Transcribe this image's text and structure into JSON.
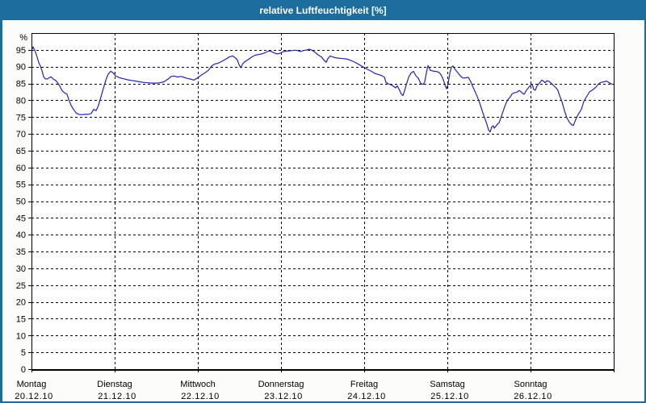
{
  "window": {
    "title": "relative Luftfeuchtigkeit [%]",
    "colors": {
      "titlebar": "#1d6c9e",
      "border": "#1d6c9e",
      "background": "#fcfdfa",
      "plot_background": "#ffffff",
      "grid": "#000000",
      "text": "#000000"
    }
  },
  "chart_data": {
    "type": "line",
    "title": "relative Luftfeuchtigkeit [%]",
    "ylabel": "%",
    "unit_label": "%",
    "ylim": [
      0,
      100
    ],
    "y_ticks": [
      0,
      5,
      10,
      15,
      20,
      25,
      30,
      35,
      40,
      45,
      50,
      55,
      60,
      65,
      70,
      75,
      80,
      85,
      90,
      95
    ],
    "grid": "dashed",
    "legend": "none",
    "x_days": [
      {
        "name": "Montag",
        "date": "20.12.10"
      },
      {
        "name": "Dienstag",
        "date": "21.12.10"
      },
      {
        "name": "Mittwoch",
        "date": "22.12.10"
      },
      {
        "name": "Donnerstag",
        "date": "23.12.10"
      },
      {
        "name": "Freitag",
        "date": "24.12.10"
      },
      {
        "name": "Samstag",
        "date": "25.12.10"
      },
      {
        "name": "Sonntag",
        "date": "26.12.10"
      }
    ],
    "series": [
      {
        "name": "relative Luftfeuchtigkeit",
        "color": "#2222b4",
        "x_unit": "days_since_start",
        "points": [
          [
            0.01,
            95.3
          ],
          [
            0.019,
            95.9
          ],
          [
            0.049,
            94.3
          ],
          [
            0.068,
            92.8
          ],
          [
            0.087,
            91.2
          ],
          [
            0.107,
            90.2
          ],
          [
            0.126,
            88.8
          ],
          [
            0.146,
            87.0
          ],
          [
            0.165,
            86.4
          ],
          [
            0.184,
            86.3
          ],
          [
            0.214,
            86.7
          ],
          [
            0.233,
            87.0
          ],
          [
            0.262,
            86.3
          ],
          [
            0.291,
            85.9
          ],
          [
            0.32,
            85.0
          ],
          [
            0.34,
            84.2
          ],
          [
            0.369,
            82.8
          ],
          [
            0.398,
            82.2
          ],
          [
            0.427,
            81.8
          ],
          [
            0.447,
            80.3
          ],
          [
            0.476,
            78.5
          ],
          [
            0.505,
            77.3
          ],
          [
            0.534,
            76.3
          ],
          [
            0.563,
            75.8
          ],
          [
            0.602,
            75.7
          ],
          [
            0.641,
            75.8
          ],
          [
            0.68,
            75.8
          ],
          [
            0.718,
            76.1
          ],
          [
            0.748,
            77.3
          ],
          [
            0.777,
            76.9
          ],
          [
            0.806,
            78.5
          ],
          [
            0.835,
            81.0
          ],
          [
            0.864,
            83.5
          ],
          [
            0.893,
            86.0
          ],
          [
            0.922,
            87.8
          ],
          [
            0.951,
            88.6
          ],
          [
            0.981,
            88.2
          ],
          [
            1.01,
            87.3
          ],
          [
            1.058,
            86.7
          ],
          [
            1.107,
            86.4
          ],
          [
            1.155,
            86.1
          ],
          [
            1.204,
            85.9
          ],
          [
            1.252,
            85.7
          ],
          [
            1.301,
            85.5
          ],
          [
            1.35,
            85.3
          ],
          [
            1.398,
            85.2
          ],
          [
            1.447,
            85.1
          ],
          [
            1.495,
            85.1
          ],
          [
            1.544,
            85.2
          ],
          [
            1.592,
            85.5
          ],
          [
            1.641,
            86.3
          ],
          [
            1.68,
            87.1
          ],
          [
            1.718,
            87.2
          ],
          [
            1.757,
            86.9
          ],
          [
            1.796,
            87.1
          ],
          [
            1.835,
            86.8
          ],
          [
            1.874,
            86.5
          ],
          [
            1.913,
            86.3
          ],
          [
            1.951,
            86.0
          ],
          [
            1.981,
            86.4
          ],
          [
            2.01,
            86.9
          ],
          [
            2.049,
            87.6
          ],
          [
            2.087,
            88.2
          ],
          [
            2.126,
            88.9
          ],
          [
            2.165,
            90.2
          ],
          [
            2.204,
            90.8
          ],
          [
            2.243,
            91.0
          ],
          [
            2.291,
            91.6
          ],
          [
            2.34,
            92.3
          ],
          [
            2.379,
            92.9
          ],
          [
            2.417,
            93.2
          ],
          [
            2.447,
            92.7
          ],
          [
            2.476,
            92.0
          ],
          [
            2.495,
            90.6
          ],
          [
            2.515,
            89.7
          ],
          [
            2.544,
            91.0
          ],
          [
            2.573,
            91.6
          ],
          [
            2.612,
            92.2
          ],
          [
            2.65,
            92.9
          ],
          [
            2.689,
            93.4
          ],
          [
            2.728,
            93.6
          ],
          [
            2.767,
            93.8
          ],
          [
            2.806,
            94.1
          ],
          [
            2.845,
            94.6
          ],
          [
            2.864,
            94.7
          ],
          [
            2.903,
            94.3
          ],
          [
            2.932,
            93.9
          ],
          [
            2.961,
            93.8
          ],
          [
            2.99,
            94.0
          ],
          [
            3.019,
            94.4
          ],
          [
            3.058,
            94.6
          ],
          [
            3.097,
            94.7
          ],
          [
            3.136,
            94.8
          ],
          [
            3.175,
            94.9
          ],
          [
            3.214,
            94.7
          ],
          [
            3.233,
            94.5
          ],
          [
            3.272,
            94.8
          ],
          [
            3.311,
            95.0
          ],
          [
            3.34,
            95.2
          ],
          [
            3.379,
            94.8
          ],
          [
            3.408,
            94.3
          ],
          [
            3.447,
            93.5
          ],
          [
            3.485,
            92.9
          ],
          [
            3.515,
            92.0
          ],
          [
            3.544,
            91.3
          ],
          [
            3.563,
            92.4
          ],
          [
            3.592,
            93.2
          ],
          [
            3.631,
            92.8
          ],
          [
            3.67,
            92.6
          ],
          [
            3.709,
            92.5
          ],
          [
            3.748,
            92.4
          ],
          [
            3.786,
            92.3
          ],
          [
            3.825,
            92.0
          ],
          [
            3.864,
            91.6
          ],
          [
            3.903,
            91.1
          ],
          [
            3.942,
            90.6
          ],
          [
            3.981,
            90.0
          ],
          [
            4.01,
            89.6
          ],
          [
            4.049,
            89.1
          ],
          [
            4.087,
            88.6
          ],
          [
            4.126,
            88.0
          ],
          [
            4.165,
            87.7
          ],
          [
            4.204,
            87.4
          ],
          [
            4.243,
            86.9
          ],
          [
            4.262,
            85.3
          ],
          [
            4.291,
            84.9
          ],
          [
            4.32,
            84.6
          ],
          [
            4.35,
            84.2
          ],
          [
            4.379,
            83.7
          ],
          [
            4.398,
            84.3
          ],
          [
            4.427,
            82.9
          ],
          [
            4.447,
            81.8
          ],
          [
            4.466,
            81.4
          ],
          [
            4.485,
            82.8
          ],
          [
            4.505,
            84.5
          ],
          [
            4.534,
            86.8
          ],
          [
            4.563,
            88.1
          ],
          [
            4.592,
            88.6
          ],
          [
            4.621,
            87.3
          ],
          [
            4.65,
            86.6
          ],
          [
            4.68,
            85.0
          ],
          [
            4.709,
            84.7
          ],
          [
            4.728,
            85.5
          ],
          [
            4.747,
            88.0
          ],
          [
            4.767,
            90.3
          ],
          [
            4.796,
            88.9
          ],
          [
            4.825,
            88.7
          ],
          [
            4.854,
            88.6
          ],
          [
            4.883,
            88.5
          ],
          [
            4.912,
            88.0
          ],
          [
            4.932,
            87.2
          ],
          [
            4.951,
            86.1
          ],
          [
            4.971,
            84.5
          ],
          [
            4.99,
            83.4
          ],
          [
            5.01,
            85.0
          ],
          [
            5.029,
            88.0
          ],
          [
            5.049,
            89.8
          ],
          [
            5.068,
            90.2
          ],
          [
            5.087,
            89.4
          ],
          [
            5.107,
            88.8
          ],
          [
            5.126,
            88.2
          ],
          [
            5.146,
            87.6
          ],
          [
            5.165,
            87.0
          ],
          [
            5.194,
            86.6
          ],
          [
            5.223,
            86.7
          ],
          [
            5.252,
            86.8
          ],
          [
            5.282,
            85.5
          ],
          [
            5.311,
            83.8
          ],
          [
            5.34,
            82.2
          ],
          [
            5.369,
            80.5
          ],
          [
            5.398,
            78.5
          ],
          [
            5.427,
            76.2
          ],
          [
            5.456,
            74.2
          ],
          [
            5.476,
            72.8
          ],
          [
            5.495,
            71.2
          ],
          [
            5.515,
            70.6
          ],
          [
            5.534,
            72.1
          ],
          [
            5.553,
            72.4
          ],
          [
            5.563,
            71.7
          ],
          [
            5.583,
            72.2
          ],
          [
            5.602,
            72.9
          ],
          [
            5.621,
            73.3
          ],
          [
            5.641,
            74.6
          ],
          [
            5.66,
            76.0
          ],
          [
            5.689,
            78.1
          ],
          [
            5.709,
            79.3
          ],
          [
            5.728,
            80.2
          ],
          [
            5.757,
            81.0
          ],
          [
            5.777,
            81.9
          ],
          [
            5.806,
            82.2
          ],
          [
            5.835,
            82.4
          ],
          [
            5.864,
            82.9
          ],
          [
            5.883,
            82.6
          ],
          [
            5.903,
            82.1
          ],
          [
            5.922,
            81.8
          ],
          [
            5.951,
            83.0
          ],
          [
            5.981,
            83.9
          ],
          [
            6.0,
            84.4
          ],
          [
            6.019,
            84.8
          ],
          [
            6.039,
            83.2
          ],
          [
            6.058,
            83.0
          ],
          [
            6.078,
            84.3
          ],
          [
            6.107,
            85.1
          ],
          [
            6.136,
            86.0
          ],
          [
            6.155,
            85.7
          ],
          [
            6.175,
            85.2
          ],
          [
            6.194,
            85.8
          ],
          [
            6.223,
            85.6
          ],
          [
            6.252,
            85.0
          ],
          [
            6.282,
            84.3
          ],
          [
            6.311,
            83.6
          ],
          [
            6.33,
            82.9
          ],
          [
            6.35,
            81.4
          ],
          [
            6.379,
            79.5
          ],
          [
            6.408,
            76.9
          ],
          [
            6.437,
            74.8
          ],
          [
            6.466,
            73.5
          ],
          [
            6.495,
            72.7
          ],
          [
            6.515,
            72.5
          ],
          [
            6.544,
            74.3
          ],
          [
            6.573,
            75.8
          ],
          [
            6.612,
            77.3
          ],
          [
            6.641,
            79.7
          ],
          [
            6.68,
            81.3
          ],
          [
            6.709,
            82.5
          ],
          [
            6.748,
            83.1
          ],
          [
            6.786,
            83.9
          ],
          [
            6.816,
            84.8
          ],
          [
            6.845,
            85.3
          ],
          [
            6.883,
            85.5
          ],
          [
            6.913,
            85.7
          ],
          [
            6.942,
            85.3
          ],
          [
            6.971,
            84.9
          ],
          [
            6.99,
            84.7
          ]
        ]
      }
    ]
  }
}
